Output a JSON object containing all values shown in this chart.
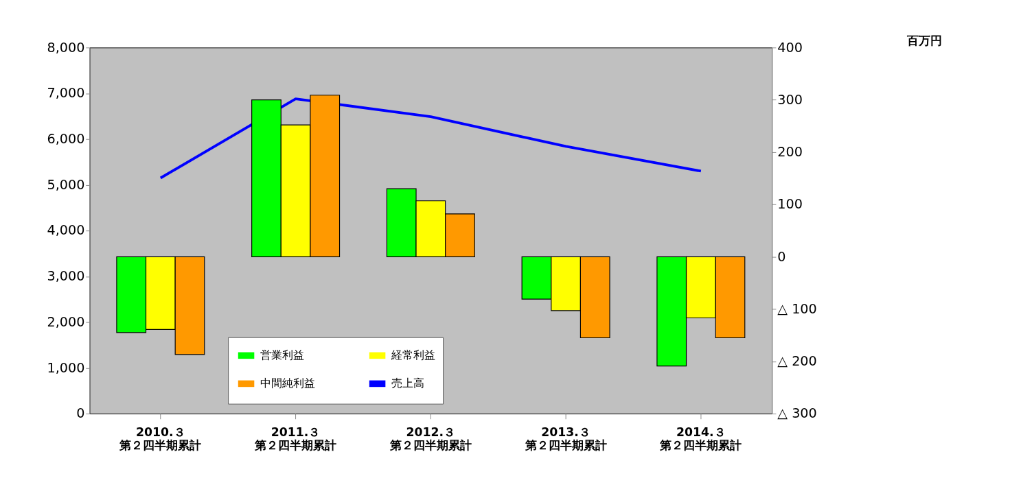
{
  "chart_data": {
    "type": "bar",
    "categories": [
      "2010.３第２四半期累計",
      "2011.３第２四半期累計",
      "2012.３第２四半期累計",
      "2013.３第２四半期累計",
      "2014.３第２四半期累計"
    ],
    "series": [
      {
        "name": "営業利益",
        "color": "#00ff00",
        "axis": "y2",
        "values": [
          -145,
          300,
          130,
          -81,
          -209
        ]
      },
      {
        "name": "経常利益",
        "color": "#ffff00",
        "axis": "y2",
        "values": [
          -139,
          252,
          107,
          -103,
          -117
        ]
      },
      {
        "name": "中間純利益",
        "color": "#ff9900",
        "axis": "y2",
        "values": [
          -187,
          309,
          82,
          -155,
          -155
        ]
      },
      {
        "name": "売上高",
        "color": "#0000ff",
        "type": "line",
        "axis": "y",
        "values": [
          5150,
          6880,
          6490,
          5840,
          5300
        ]
      }
    ],
    "ylim": [
      0,
      8000
    ],
    "yticks": [
      {
        "value": 0,
        "label": "0"
      },
      {
        "value": 1000,
        "label": "1,000"
      },
      {
        "value": 2000,
        "label": "2,000"
      },
      {
        "value": 3000,
        "label": "3,000"
      },
      {
        "value": 4000,
        "label": "4,000"
      },
      {
        "value": 5000,
        "label": "5,000"
      },
      {
        "value": 6000,
        "label": "6,000"
      },
      {
        "value": 7000,
        "label": "7,000"
      },
      {
        "value": 8000,
        "label": "8,000"
      }
    ],
    "y2lim": [
      -300,
      400
    ],
    "y2ticks": [
      {
        "value": -300,
        "label": "△ 300"
      },
      {
        "value": -200,
        "label": "△ 200"
      },
      {
        "value": -100,
        "label": "△ 100"
      },
      0,
      100,
      200,
      300,
      400
    ],
    "annotations": [
      "百万円"
    ],
    "legend": "bottom",
    "grid": false
  }
}
